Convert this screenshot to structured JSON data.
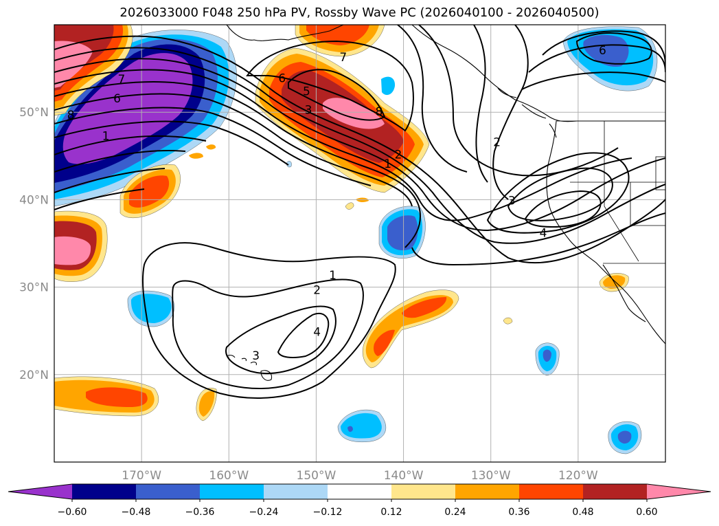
{
  "title": "2026033000 F048 250 hPa PV, Rossby Wave PC (2026040100 - 2026040500)",
  "map": {
    "lon_range": [
      -180,
      -110
    ],
    "lat_range": [
      10,
      60
    ],
    "lon_ticks": [
      {
        "lon": -170,
        "label": "170°W"
      },
      {
        "lon": -160,
        "label": "160°W"
      },
      {
        "lon": -150,
        "label": "150°W"
      },
      {
        "lon": -140,
        "label": "140°W"
      },
      {
        "lon": -130,
        "label": "130°W"
      },
      {
        "lon": -120,
        "label": "120°W"
      }
    ],
    "lat_ticks": [
      {
        "lat": 50,
        "label": "50°N"
      },
      {
        "lat": 40,
        "label": "40°N"
      },
      {
        "lat": 30,
        "label": "30°N"
      },
      {
        "lat": 20,
        "label": "20°N"
      }
    ],
    "contour_labels": [
      {
        "text": "7",
        "lon": -146.9,
        "lat": 56.3
      },
      {
        "text": "6",
        "lon": -153.9,
        "lat": 53.9
      },
      {
        "text": "5",
        "lon": -151.1,
        "lat": 52.4
      },
      {
        "text": "3",
        "lon": -150.9,
        "lat": 50.3
      },
      {
        "text": "8",
        "lon": -142.8,
        "lat": 50.1
      },
      {
        "text": "1",
        "lon": -141.8,
        "lat": 44.1
      },
      {
        "text": "2",
        "lon": -140.6,
        "lat": 45.2
      },
      {
        "text": "2",
        "lon": -129.3,
        "lat": 46.6
      },
      {
        "text": "3",
        "lon": -127.6,
        "lat": 39.9
      },
      {
        "text": "4",
        "lon": -124.0,
        "lat": 36.2
      },
      {
        "text": "6",
        "lon": -117.2,
        "lat": 57.1
      },
      {
        "text": "7",
        "lon": -172.3,
        "lat": 53.8
      },
      {
        "text": "6",
        "lon": -172.8,
        "lat": 51.6
      },
      {
        "text": "8",
        "lon": -178.1,
        "lat": 49.7
      },
      {
        "text": "1",
        "lon": -174.1,
        "lat": 47.3
      },
      {
        "text": "1",
        "lon": -148.1,
        "lat": 31.4
      },
      {
        "text": "2",
        "lon": -149.9,
        "lat": 29.7
      },
      {
        "text": "4",
        "lon": -149.9,
        "lat": 24.9
      },
      {
        "text": "3",
        "lon": -156.9,
        "lat": 22.2
      }
    ]
  },
  "colorbar": {
    "tick_labels": [
      "−0.60",
      "−0.48",
      "−0.36",
      "−0.24",
      "−0.12",
      "0.12",
      "0.24",
      "0.36",
      "0.48",
      "0.60"
    ],
    "colors": [
      "#9932cc",
      "#00008b",
      "#3a5fcd",
      "#00bfff",
      "#add8f6",
      "#ffffff",
      "#ffe68c",
      "#ffa500",
      "#ff4500",
      "#b22222",
      "#ff88aa"
    ]
  },
  "palette": {
    "neg4": "#9932cc",
    "neg3": "#00008b",
    "neg2": "#3a5fcd",
    "neg1": "#00bfff",
    "neg0": "#add8f6",
    "pos0": "#ffe68c",
    "pos1": "#ffa500",
    "pos2": "#ff4500",
    "pos3": "#b22222",
    "pos4": "#ff88aa"
  }
}
